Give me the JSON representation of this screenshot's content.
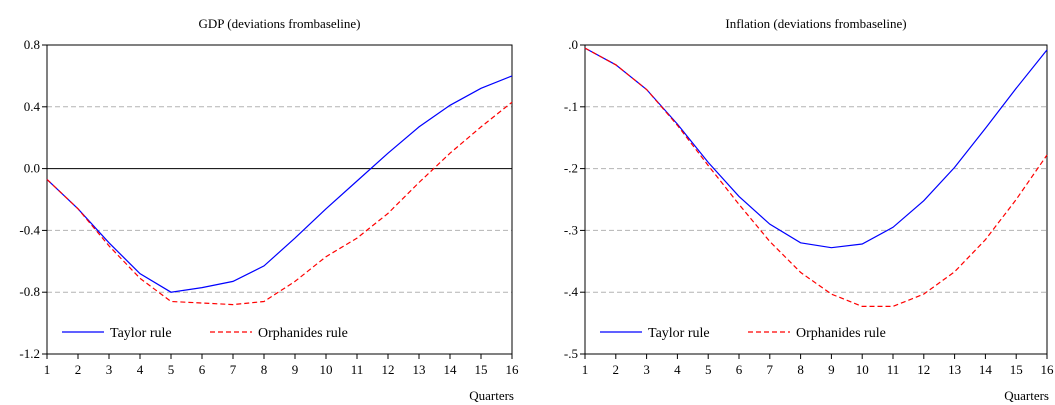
{
  "chart_data": [
    {
      "type": "line",
      "title": "GDP (deviations frombaseline)",
      "xlabel": "Quarters",
      "ylabel": "",
      "x": [
        1,
        2,
        3,
        4,
        5,
        6,
        7,
        8,
        9,
        10,
        11,
        12,
        13,
        14,
        15,
        16
      ],
      "xlim": [
        1,
        16
      ],
      "ylim": [
        -1.2,
        0.8
      ],
      "yticks": [
        0.8,
        0.4,
        0.0,
        -0.4,
        -0.8,
        -1.2
      ],
      "ytick_labels": [
        "0.8",
        "0.4",
        "0.0",
        "-0.4",
        "-0.8",
        "-1.2"
      ],
      "zero_line": true,
      "legend_position": "bottom-left",
      "series": [
        {
          "name": "Taylor rule",
          "color": "#0000ff",
          "dash": "solid",
          "values": [
            -0.07,
            -0.26,
            -0.48,
            -0.68,
            -0.8,
            -0.77,
            -0.73,
            -0.63,
            -0.45,
            -0.26,
            -0.08,
            0.1,
            0.27,
            0.41,
            0.52,
            0.6
          ]
        },
        {
          "name": "Orphanides rule",
          "color": "#ff0000",
          "dash": "dashed",
          "values": [
            -0.07,
            -0.26,
            -0.5,
            -0.71,
            -0.86,
            -0.87,
            -0.88,
            -0.86,
            -0.73,
            -0.57,
            -0.45,
            -0.29,
            -0.09,
            0.1,
            0.27,
            0.43
          ]
        }
      ]
    },
    {
      "type": "line",
      "title": "Inflation (deviations frombaseline)",
      "xlabel": "Quarters",
      "ylabel": "",
      "x": [
        1,
        2,
        3,
        4,
        5,
        6,
        7,
        8,
        9,
        10,
        11,
        12,
        13,
        14,
        15,
        16
      ],
      "xlim": [
        1,
        16
      ],
      "ylim": [
        -0.5,
        0.0
      ],
      "yticks": [
        0.0,
        -0.1,
        -0.2,
        -0.3,
        -0.4,
        -0.5
      ],
      "ytick_labels": [
        ".0",
        "-.1",
        "-.2",
        "-.3",
        "-.4",
        "-.5"
      ],
      "zero_line": false,
      "legend_position": "bottom-left",
      "series": [
        {
          "name": "Taylor rule",
          "color": "#0000ff",
          "dash": "solid",
          "values": [
            -0.005,
            -0.032,
            -0.072,
            -0.128,
            -0.19,
            -0.245,
            -0.29,
            -0.32,
            -0.328,
            -0.322,
            -0.295,
            -0.252,
            -0.198,
            -0.135,
            -0.07,
            -0.008
          ]
        },
        {
          "name": "Orphanides rule",
          "color": "#ff0000",
          "dash": "dashed",
          "values": [
            -0.005,
            -0.032,
            -0.072,
            -0.13,
            -0.195,
            -0.258,
            -0.318,
            -0.368,
            -0.403,
            -0.423,
            -0.423,
            -0.403,
            -0.367,
            -0.315,
            -0.25,
            -0.178
          ]
        }
      ]
    }
  ]
}
